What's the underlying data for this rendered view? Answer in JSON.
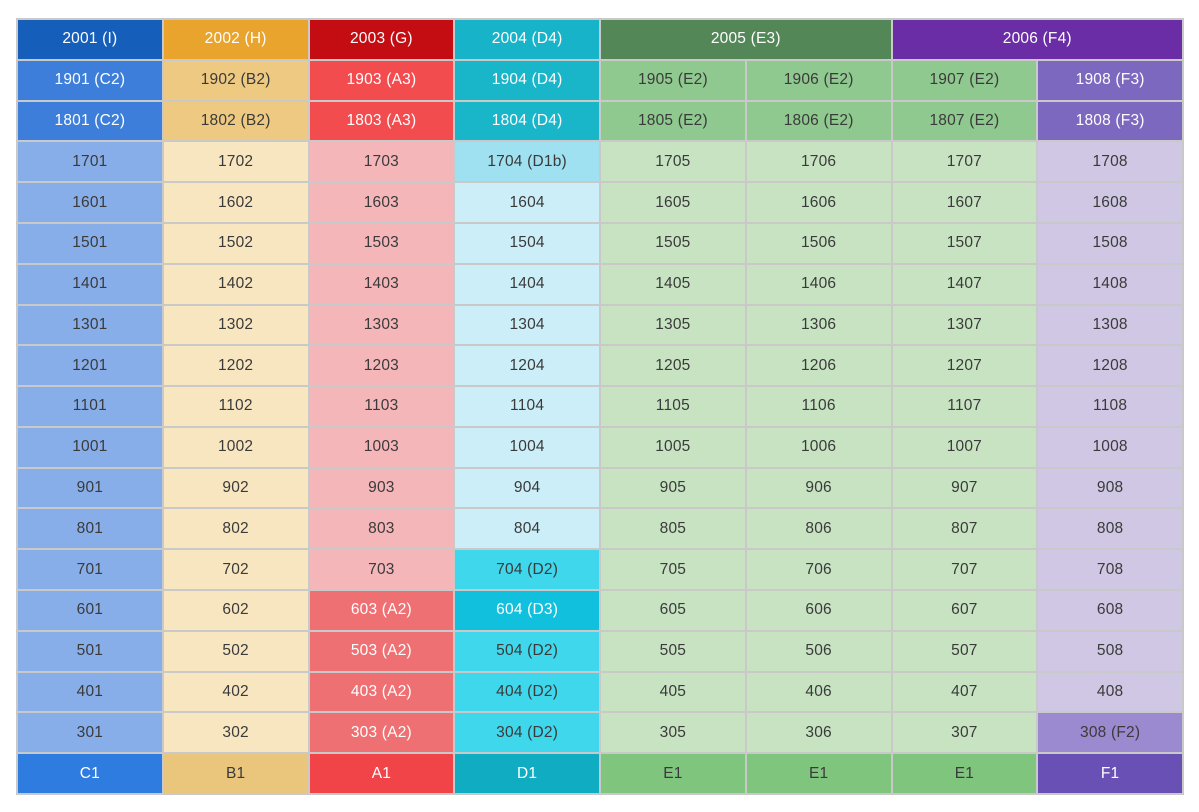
{
  "page": {
    "background": "#ffffff",
    "gridline_color": "#c9c9c9",
    "description_labels": {
      "top_floor": "20",
      "bottom_row_types": [
        "C1",
        "B1",
        "A1",
        "D1",
        "E1",
        "F1"
      ]
    }
  },
  "palette": {
    "c-head": {
      "bg": "#155fbb",
      "fg": "#ffffff"
    },
    "c-sub": {
      "bg": "#3c7ed9",
      "fg": "#ffffff"
    },
    "c-body": {
      "bg": "#88aee9",
      "fg": "#3a3a3a"
    },
    "c-foot": {
      "bg": "#2e7cdf",
      "fg": "#ffffff"
    },
    "b-head": {
      "bg": "#e9a42e",
      "fg": "#ffffff"
    },
    "b-sub": {
      "bg": "#eec982",
      "fg": "#3a3a3a"
    },
    "b-body": {
      "bg": "#f8e6c1",
      "fg": "#3a3a3a"
    },
    "b-foot": {
      "bg": "#eac67c",
      "fg": "#3a3a3a"
    },
    "a-head": {
      "bg": "#c30d12",
      "fg": "#ffffff"
    },
    "a-sub": {
      "bg": "#f24c4f",
      "fg": "#ffffff"
    },
    "a-body": {
      "bg": "#f5b6b9",
      "fg": "#3a3a3a"
    },
    "a-spec": {
      "bg": "#ee7073",
      "fg": "#ffffff"
    },
    "a-foot": {
      "bg": "#f04449",
      "fg": "#ffffff"
    },
    "d-head": {
      "bg": "#17b3c8",
      "fg": "#ffffff"
    },
    "d-sub": {
      "bg": "#19b5c9",
      "fg": "#ffffff"
    },
    "d1b": {
      "bg": "#9fe1f0",
      "fg": "#3a3a3a"
    },
    "d-body": {
      "bg": "#cceef8",
      "fg": "#3a3a3a"
    },
    "d2": {
      "bg": "#3ed7ec",
      "fg": "#3a3a3a"
    },
    "d3": {
      "bg": "#10c0dc",
      "fg": "#ffffff"
    },
    "d-foot": {
      "bg": "#10adc2",
      "fg": "#ffffff"
    },
    "e-head": {
      "bg": "#538758",
      "fg": "#ffffff"
    },
    "e-sub": {
      "bg": "#8fc98f",
      "fg": "#3a3a3a"
    },
    "e-body": {
      "bg": "#c7e3c2",
      "fg": "#3a3a3a"
    },
    "e-foot": {
      "bg": "#7fc57e",
      "fg": "#3a3a3a"
    },
    "f-head": {
      "bg": "#6a2da6",
      "fg": "#ffffff"
    },
    "f-sub": {
      "bg": "#7c68bf",
      "fg": "#ffffff"
    },
    "f-body": {
      "bg": "#cfc7e3",
      "fg": "#3a3a3a"
    },
    "f2": {
      "bg": "#9c8ad0",
      "fg": "#3a3a3a"
    },
    "f-foot": {
      "bg": "#6950b5",
      "fg": "#ffffff"
    }
  },
  "grid": {
    "columns": 8,
    "header": [
      {
        "label": "2001 (I)",
        "variant": "c-head",
        "span": 1
      },
      {
        "label": "2002 (H)",
        "variant": "b-head",
        "span": 1
      },
      {
        "label": "2003 (G)",
        "variant": "a-head",
        "span": 1
      },
      {
        "label": "2004 (D4)",
        "variant": "d-head",
        "span": 1
      },
      {
        "label": "2005 (E3)",
        "variant": "e-head",
        "span": 2
      },
      {
        "label": "2006 (F4)",
        "variant": "f-head",
        "span": 2
      }
    ],
    "rows": [
      [
        {
          "label": "1901 (C2)",
          "variant": "c-sub"
        },
        {
          "label": "1902 (B2)",
          "variant": "b-sub"
        },
        {
          "label": "1903 (A3)",
          "variant": "a-sub"
        },
        {
          "label": "1904 (D4)",
          "variant": "d-sub"
        },
        {
          "label": "1905 (E2)",
          "variant": "e-sub"
        },
        {
          "label": "1906 (E2)",
          "variant": "e-sub"
        },
        {
          "label": "1907 (E2)",
          "variant": "e-sub"
        },
        {
          "label": "1908 (F3)",
          "variant": "f-sub"
        }
      ],
      [
        {
          "label": "1801 (C2)",
          "variant": "c-sub"
        },
        {
          "label": "1802 (B2)",
          "variant": "b-sub"
        },
        {
          "label": "1803 (A3)",
          "variant": "a-sub"
        },
        {
          "label": "1804 (D4)",
          "variant": "d-sub"
        },
        {
          "label": "1805 (E2)",
          "variant": "e-sub"
        },
        {
          "label": "1806 (E2)",
          "variant": "e-sub"
        },
        {
          "label": "1807 (E2)",
          "variant": "e-sub"
        },
        {
          "label": "1808 (F3)",
          "variant": "f-sub"
        }
      ],
      [
        {
          "label": "1701",
          "variant": "c-body"
        },
        {
          "label": "1702",
          "variant": "b-body"
        },
        {
          "label": "1703",
          "variant": "a-body"
        },
        {
          "label": "1704 (D1b)",
          "variant": "d1b"
        },
        {
          "label": "1705",
          "variant": "e-body"
        },
        {
          "label": "1706",
          "variant": "e-body"
        },
        {
          "label": "1707",
          "variant": "e-body"
        },
        {
          "label": "1708",
          "variant": "f-body"
        }
      ],
      [
        {
          "label": "1601",
          "variant": "c-body"
        },
        {
          "label": "1602",
          "variant": "b-body"
        },
        {
          "label": "1603",
          "variant": "a-body"
        },
        {
          "label": "1604",
          "variant": "d-body"
        },
        {
          "label": "1605",
          "variant": "e-body"
        },
        {
          "label": "1606",
          "variant": "e-body"
        },
        {
          "label": "1607",
          "variant": "e-body"
        },
        {
          "label": "1608",
          "variant": "f-body"
        }
      ],
      [
        {
          "label": "1501",
          "variant": "c-body"
        },
        {
          "label": "1502",
          "variant": "b-body"
        },
        {
          "label": "1503",
          "variant": "a-body"
        },
        {
          "label": "1504",
          "variant": "d-body"
        },
        {
          "label": "1505",
          "variant": "e-body"
        },
        {
          "label": "1506",
          "variant": "e-body"
        },
        {
          "label": "1507",
          "variant": "e-body"
        },
        {
          "label": "1508",
          "variant": "f-body"
        }
      ],
      [
        {
          "label": "1401",
          "variant": "c-body"
        },
        {
          "label": "1402",
          "variant": "b-body"
        },
        {
          "label": "1403",
          "variant": "a-body"
        },
        {
          "label": "1404",
          "variant": "d-body"
        },
        {
          "label": "1405",
          "variant": "e-body"
        },
        {
          "label": "1406",
          "variant": "e-body"
        },
        {
          "label": "1407",
          "variant": "e-body"
        },
        {
          "label": "1408",
          "variant": "f-body"
        }
      ],
      [
        {
          "label": "1301",
          "variant": "c-body"
        },
        {
          "label": "1302",
          "variant": "b-body"
        },
        {
          "label": "1303",
          "variant": "a-body"
        },
        {
          "label": "1304",
          "variant": "d-body"
        },
        {
          "label": "1305",
          "variant": "e-body"
        },
        {
          "label": "1306",
          "variant": "e-body"
        },
        {
          "label": "1307",
          "variant": "e-body"
        },
        {
          "label": "1308",
          "variant": "f-body"
        }
      ],
      [
        {
          "label": "1201",
          "variant": "c-body"
        },
        {
          "label": "1202",
          "variant": "b-body"
        },
        {
          "label": "1203",
          "variant": "a-body"
        },
        {
          "label": "1204",
          "variant": "d-body"
        },
        {
          "label": "1205",
          "variant": "e-body"
        },
        {
          "label": "1206",
          "variant": "e-body"
        },
        {
          "label": "1207",
          "variant": "e-body"
        },
        {
          "label": "1208",
          "variant": "f-body"
        }
      ],
      [
        {
          "label": "1101",
          "variant": "c-body"
        },
        {
          "label": "1102",
          "variant": "b-body"
        },
        {
          "label": "1103",
          "variant": "a-body"
        },
        {
          "label": "1104",
          "variant": "d-body"
        },
        {
          "label": "1105",
          "variant": "e-body"
        },
        {
          "label": "1106",
          "variant": "e-body"
        },
        {
          "label": "1107",
          "variant": "e-body"
        },
        {
          "label": "1108",
          "variant": "f-body"
        }
      ],
      [
        {
          "label": "1001",
          "variant": "c-body"
        },
        {
          "label": "1002",
          "variant": "b-body"
        },
        {
          "label": "1003",
          "variant": "a-body"
        },
        {
          "label": "1004",
          "variant": "d-body"
        },
        {
          "label": "1005",
          "variant": "e-body"
        },
        {
          "label": "1006",
          "variant": "e-body"
        },
        {
          "label": "1007",
          "variant": "e-body"
        },
        {
          "label": "1008",
          "variant": "f-body"
        }
      ],
      [
        {
          "label": "901",
          "variant": "c-body"
        },
        {
          "label": "902",
          "variant": "b-body"
        },
        {
          "label": "903",
          "variant": "a-body"
        },
        {
          "label": "904",
          "variant": "d-body"
        },
        {
          "label": "905",
          "variant": "e-body"
        },
        {
          "label": "906",
          "variant": "e-body"
        },
        {
          "label": "907",
          "variant": "e-body"
        },
        {
          "label": "908",
          "variant": "f-body"
        }
      ],
      [
        {
          "label": "801",
          "variant": "c-body"
        },
        {
          "label": "802",
          "variant": "b-body"
        },
        {
          "label": "803",
          "variant": "a-body"
        },
        {
          "label": "804",
          "variant": "d-body"
        },
        {
          "label": "805",
          "variant": "e-body"
        },
        {
          "label": "806",
          "variant": "e-body"
        },
        {
          "label": "807",
          "variant": "e-body"
        },
        {
          "label": "808",
          "variant": "f-body"
        }
      ],
      [
        {
          "label": "701",
          "variant": "c-body"
        },
        {
          "label": "702",
          "variant": "b-body"
        },
        {
          "label": "703",
          "variant": "a-body"
        },
        {
          "label": "704 (D2)",
          "variant": "d2"
        },
        {
          "label": "705",
          "variant": "e-body"
        },
        {
          "label": "706",
          "variant": "e-body"
        },
        {
          "label": "707",
          "variant": "e-body"
        },
        {
          "label": "708",
          "variant": "f-body"
        }
      ],
      [
        {
          "label": "601",
          "variant": "c-body"
        },
        {
          "label": "602",
          "variant": "b-body"
        },
        {
          "label": "603 (A2)",
          "variant": "a-spec"
        },
        {
          "label": "604 (D3)",
          "variant": "d3"
        },
        {
          "label": "605",
          "variant": "e-body"
        },
        {
          "label": "606",
          "variant": "e-body"
        },
        {
          "label": "607",
          "variant": "e-body"
        },
        {
          "label": "608",
          "variant": "f-body"
        }
      ],
      [
        {
          "label": "501",
          "variant": "c-body"
        },
        {
          "label": "502",
          "variant": "b-body"
        },
        {
          "label": "503 (A2)",
          "variant": "a-spec"
        },
        {
          "label": "504 (D2)",
          "variant": "d2"
        },
        {
          "label": "505",
          "variant": "e-body"
        },
        {
          "label": "506",
          "variant": "e-body"
        },
        {
          "label": "507",
          "variant": "e-body"
        },
        {
          "label": "508",
          "variant": "f-body"
        }
      ],
      [
        {
          "label": "401",
          "variant": "c-body"
        },
        {
          "label": "402",
          "variant": "b-body"
        },
        {
          "label": "403 (A2)",
          "variant": "a-spec"
        },
        {
          "label": "404 (D2)",
          "variant": "d2"
        },
        {
          "label": "405",
          "variant": "e-body"
        },
        {
          "label": "406",
          "variant": "e-body"
        },
        {
          "label": "407",
          "variant": "e-body"
        },
        {
          "label": "408",
          "variant": "f-body"
        }
      ],
      [
        {
          "label": "301",
          "variant": "c-body"
        },
        {
          "label": "302",
          "variant": "b-body"
        },
        {
          "label": "303 (A2)",
          "variant": "a-spec"
        },
        {
          "label": "304 (D2)",
          "variant": "d2"
        },
        {
          "label": "305",
          "variant": "e-body"
        },
        {
          "label": "306",
          "variant": "e-body"
        },
        {
          "label": "307",
          "variant": "e-body"
        },
        {
          "label": "308 (F2)",
          "variant": "f2"
        }
      ]
    ],
    "footer": [
      {
        "label": "C1",
        "variant": "c-foot"
      },
      {
        "label": "B1",
        "variant": "b-foot"
      },
      {
        "label": "A1",
        "variant": "a-foot"
      },
      {
        "label": "D1",
        "variant": "d-foot"
      },
      {
        "label": "E1",
        "variant": "e-foot"
      },
      {
        "label": "E1",
        "variant": "e-foot"
      },
      {
        "label": "E1",
        "variant": "e-foot"
      },
      {
        "label": "F1",
        "variant": "f-foot"
      }
    ]
  }
}
